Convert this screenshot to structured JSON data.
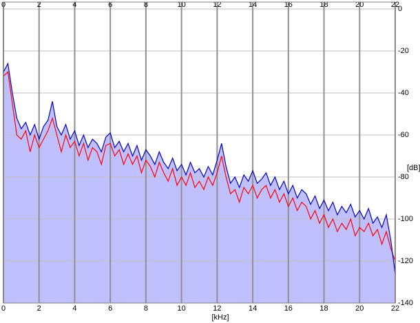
{
  "chart_data": {
    "type": "line",
    "x_label": "[kHz]",
    "y_label": "[dB]",
    "x": [
      0,
      0.25,
      0.5,
      0.75,
      1,
      1.25,
      1.5,
      1.75,
      2,
      2.25,
      2.5,
      2.75,
      3,
      3.25,
      3.5,
      3.75,
      4,
      4.25,
      4.5,
      4.75,
      5,
      5.25,
      5.5,
      5.75,
      6,
      6.25,
      6.5,
      6.75,
      7,
      7.25,
      7.5,
      7.75,
      8,
      8.25,
      8.5,
      8.75,
      9,
      9.25,
      9.5,
      9.75,
      10,
      10.25,
      10.5,
      10.75,
      11,
      11.25,
      11.5,
      11.75,
      12,
      12.25,
      12.5,
      12.75,
      13,
      13.25,
      13.5,
      13.75,
      14,
      14.25,
      14.5,
      14.75,
      15,
      15.25,
      15.5,
      15.75,
      16,
      16.25,
      16.5,
      16.75,
      17,
      17.25,
      17.5,
      17.75,
      18,
      18.25,
      18.5,
      18.75,
      19,
      19.25,
      19.5,
      19.75,
      20,
      20.25,
      20.5,
      20.75,
      21,
      21.25,
      21.5,
      21.75,
      22
    ],
    "series": [
      {
        "color": "#0000c0",
        "fill": "#c0c0ff",
        "values": [
          -30,
          -26,
          -40,
          -52,
          -57,
          -54,
          -60,
          -55,
          -62,
          -56,
          -53,
          -44,
          -56,
          -60,
          -55,
          -62,
          -58,
          -65,
          -60,
          -66,
          -62,
          -64,
          -68,
          -61,
          -59,
          -66,
          -63,
          -68,
          -64,
          -70,
          -65,
          -72,
          -67,
          -70,
          -74,
          -68,
          -73,
          -76,
          -71,
          -77,
          -74,
          -79,
          -73,
          -78,
          -76,
          -80,
          -75,
          -79,
          -72,
          -64,
          -75,
          -83,
          -80,
          -85,
          -79,
          -82,
          -77,
          -83,
          -81,
          -78,
          -84,
          -80,
          -86,
          -82,
          -88,
          -84,
          -90,
          -86,
          -88,
          -93,
          -89,
          -95,
          -91,
          -96,
          -92,
          -98,
          -94,
          -97,
          -93,
          -99,
          -96,
          -100,
          -95,
          -102,
          -99,
          -104,
          -98,
          -110,
          -126
        ]
      },
      {
        "color": "#ff0000",
        "values": [
          -32,
          -30,
          -45,
          -60,
          -62,
          -58,
          -68,
          -60,
          -66,
          -62,
          -58,
          -52,
          -60,
          -68,
          -60,
          -66,
          -63,
          -70,
          -64,
          -72,
          -66,
          -68,
          -74,
          -65,
          -64,
          -70,
          -67,
          -74,
          -69,
          -74,
          -70,
          -78,
          -72,
          -75,
          -80,
          -73,
          -78,
          -82,
          -76,
          -84,
          -80,
          -84,
          -78,
          -85,
          -82,
          -86,
          -80,
          -84,
          -78,
          -70,
          -80,
          -88,
          -86,
          -92,
          -85,
          -88,
          -84,
          -90,
          -86,
          -84,
          -90,
          -86,
          -92,
          -88,
          -94,
          -90,
          -96,
          -92,
          -94,
          -100,
          -96,
          -102,
          -98,
          -104,
          -100,
          -106,
          -102,
          -105,
          -100,
          -108,
          -104,
          -106,
          -102,
          -108,
          -105,
          -112,
          -106,
          -114,
          -120
        ]
      }
    ],
    "xlim": [
      0,
      22
    ],
    "xticks": [
      0,
      2,
      4,
      6,
      8,
      10,
      12,
      14,
      16,
      18,
      20,
      22
    ],
    "ylim": [
      -140,
      0
    ],
    "yticks": [
      0,
      -20,
      -40,
      -60,
      -80,
      -100,
      -120,
      -140
    ],
    "grid": true
  }
}
